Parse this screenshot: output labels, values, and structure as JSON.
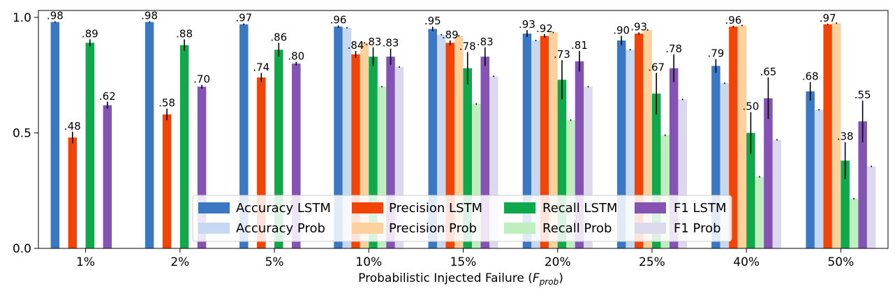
{
  "chart_data": {
    "type": "bar",
    "xlabel": "Probabilistic Injected Failure (",
    "xlabel_symbol": "F",
    "xlabel_subscript": "prob",
    "xlabel_close": ")",
    "ylim": [
      0,
      1.0
    ],
    "y_ticks": [
      "0.0",
      "0.5",
      "1.0"
    ],
    "y_tick_values": [
      0,
      0.5,
      1.0
    ],
    "categories": [
      "1%",
      "2%",
      "5%",
      "10%",
      "15%",
      "20%",
      "25%",
      "40%",
      "50%"
    ],
    "legend": {
      "placement": "lower-center",
      "columns": 4
    },
    "series": [
      {
        "name": "Accuracy LSTM",
        "legend": [
          "Accuracy",
          "LSTM"
        ],
        "color": "#3a78c4",
        "values": [
          0.98,
          0.98,
          0.97,
          0.96,
          0.95,
          0.93,
          0.9,
          0.79,
          0.68
        ],
        "errors": [
          0.003,
          0.003,
          0.004,
          0.005,
          0.01,
          0.015,
          0.02,
          0.03,
          0.04
        ],
        "labels": [
          ".98",
          ".98",
          ".97",
          ".96",
          ".95",
          ".93",
          ".90",
          ".79",
          ".68"
        ]
      },
      {
        "name": "Accuracy Prob",
        "legend": [
          "Accuracy",
          "Prob"
        ],
        "color": "#c6d9f0",
        "values": [
          null,
          null,
          null,
          0.955,
          0.925,
          0.9,
          0.86,
          0.715,
          0.6
        ],
        "errors": [
          0,
          0,
          0,
          0.003,
          0.003,
          0.003,
          0.003,
          0.003,
          0.003
        ],
        "labels": [
          "",
          "",
          "",
          "",
          "",
          "",
          "",
          "",
          ""
        ]
      },
      {
        "name": "Precision LSTM",
        "legend": [
          "Precision",
          "LSTM"
        ],
        "color": "#f24407",
        "values": [
          0.48,
          0.58,
          0.74,
          0.84,
          0.89,
          0.92,
          0.93,
          0.96,
          0.97
        ],
        "errors": [
          0.025,
          0.025,
          0.02,
          0.015,
          0.01,
          0.008,
          0.005,
          0.004,
          0.003
        ],
        "labels": [
          ".48",
          ".58",
          ".74",
          ".84",
          ".89",
          ".92",
          ".93",
          ".96",
          ".97"
        ]
      },
      {
        "name": "Precision Prob",
        "legend": [
          "Precision",
          "Prob"
        ],
        "color": "#fdd09c",
        "values": [
          null,
          null,
          null,
          0.89,
          0.92,
          0.935,
          0.945,
          0.965,
          0.975
        ],
        "errors": [
          0,
          0,
          0,
          0.003,
          0.003,
          0.003,
          0.003,
          0.003,
          0.003
        ],
        "labels": [
          "",
          "",
          "",
          "",
          "",
          "",
          "",
          "",
          ""
        ]
      },
      {
        "name": "Recall LSTM",
        "legend": [
          "Recall",
          "LSTM"
        ],
        "color": "#0fa84a",
        "values": [
          0.89,
          0.88,
          0.86,
          0.83,
          0.78,
          0.73,
          0.67,
          0.5,
          0.38
        ],
        "errors": [
          0.015,
          0.025,
          0.03,
          0.04,
          0.07,
          0.085,
          0.09,
          0.09,
          0.08
        ],
        "labels": [
          ".89",
          ".88",
          ".86",
          ".83",
          ".78",
          ".73",
          ".67",
          ".50",
          ".38"
        ]
      },
      {
        "name": "Recall Prob",
        "legend": [
          "Recall",
          "Prob"
        ],
        "color": "#bfeebf",
        "values": [
          null,
          null,
          null,
          0.7,
          0.625,
          0.555,
          0.49,
          0.31,
          0.215
        ],
        "errors": [
          0,
          0,
          0,
          0.003,
          0.003,
          0.003,
          0.003,
          0.003,
          0.003
        ],
        "labels": [
          "",
          "",
          "",
          "",
          "",
          "",
          "",
          "",
          ""
        ]
      },
      {
        "name": "F1 LSTM",
        "legend": [
          "F1",
          "LSTM"
        ],
        "color": "#8453b4",
        "values": [
          0.62,
          0.7,
          0.8,
          0.83,
          0.83,
          0.81,
          0.78,
          0.65,
          0.55
        ],
        "errors": [
          0.015,
          0.008,
          0.008,
          0.035,
          0.04,
          0.045,
          0.06,
          0.09,
          0.09
        ],
        "labels": [
          ".62",
          ".70",
          ".80",
          ".83",
          ".83",
          ".81",
          ".78",
          ".65",
          ".55"
        ]
      },
      {
        "name": "F1 Prob",
        "legend": [
          "F1",
          "Prob"
        ],
        "color": "#dcd8ee",
        "values": [
          null,
          null,
          null,
          0.785,
          0.745,
          0.7,
          0.645,
          0.47,
          0.355
        ],
        "errors": [
          0,
          0,
          0,
          0.003,
          0.003,
          0.003,
          0.003,
          0.003,
          0.003
        ],
        "labels": [
          "",
          "",
          "",
          "",
          "",
          "",
          "",
          "",
          ""
        ]
      }
    ]
  }
}
